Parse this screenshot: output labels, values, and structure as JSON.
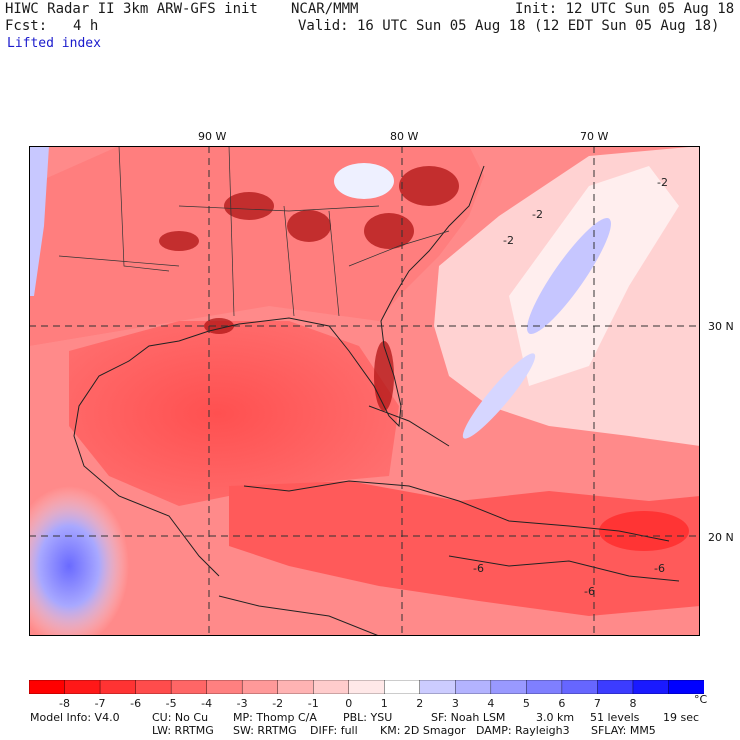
{
  "header": {
    "title_left": "HIWC Radar II 3km ARW-GFS init",
    "org": "NCAR/MMM",
    "init": "Init: 12 UTC Sun 05 Aug 18",
    "fcst_label": "Fcst:",
    "fcst_value": "4 h",
    "valid": "Valid: 16 UTC Sun 05 Aug 18 (12 EDT Sun 05 Aug 18)",
    "field": "Lifted index"
  },
  "axes": {
    "lon_ticks": [
      "90 W",
      "80 W",
      "70 W"
    ],
    "lat_ticks": [
      "30 N",
      "20 N"
    ]
  },
  "contour_labels": [
    "-2",
    "-2",
    "-2",
    "-6",
    "-6",
    "-6"
  ],
  "colorbar": {
    "labels": [
      "-8",
      "-7",
      "-6",
      "-5",
      "-4",
      "-3",
      "-2",
      "-1",
      "0",
      "1",
      "2",
      "3",
      "4",
      "5",
      "6",
      "7",
      "8"
    ],
    "unit": "°C",
    "colors": [
      "#ff0000",
      "#ff1818",
      "#ff3333",
      "#ff4c4c",
      "#ff6666",
      "#ff8080",
      "#ff9999",
      "#ffb3b3",
      "#ffcccc",
      "#ffe8e8",
      "#ffffff",
      "#ccccff",
      "#b3b3ff",
      "#9999ff",
      "#7f7fff",
      "#6666ff",
      "#3c3cff",
      "#1a1aff",
      "#0000ff"
    ]
  },
  "footer": {
    "line1": [
      "Model Info: V4.0",
      "CU: No Cu",
      "MP: Thomp C/A",
      "PBL: YSU",
      "SF: Noah LSM",
      "3.0 km",
      "51 levels",
      "19 sec"
    ],
    "line2": [
      "LW: RRTMG",
      "SW: RRTMG",
      "DIFF: full",
      "KM: 2D Smagor",
      "DAMP: Rayleigh3",
      "SFLAY: MM5"
    ]
  }
}
